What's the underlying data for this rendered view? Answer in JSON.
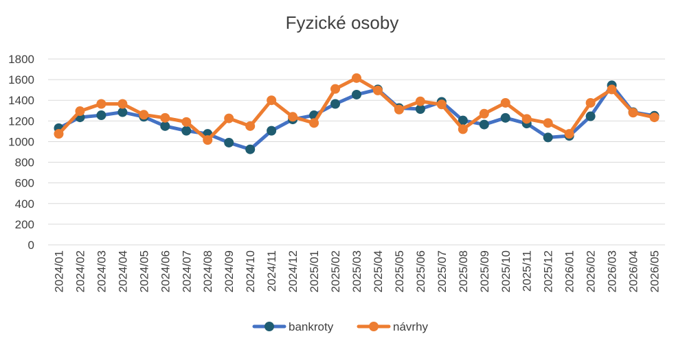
{
  "chart_data": {
    "type": "line",
    "title": "Fyzické osoby",
    "xlabel": "",
    "ylabel": "",
    "ylim": [
      0,
      1800
    ],
    "yticks": [
      0,
      200,
      400,
      600,
      800,
      1000,
      1200,
      1400,
      1600,
      1800
    ],
    "grid": true,
    "legend_position": "bottom",
    "categories": [
      "2024/01",
      "2024/02",
      "2024/03",
      "2024/04",
      "2024/05",
      "2024/06",
      "2024/07",
      "2024/08",
      "2024/09",
      "2024/10",
      "2024/11",
      "2024/12",
      "2025/01",
      "2025/02",
      "2025/03",
      "2025/04",
      "2025/05",
      "2025/06",
      "2025/07",
      "2025/08",
      "2025/09",
      "2025/10",
      "2025/11",
      "2025/12",
      "2026/01",
      "2026/02",
      "2026/03",
      "2026/04",
      "2026/05"
    ],
    "series": [
      {
        "name": "bankroty",
        "color": "#4472C4",
        "marker_color": "#1F5C70",
        "values": [
          1130,
          1235,
          1255,
          1285,
          1240,
          1150,
          1105,
          1075,
          990,
          925,
          1105,
          1215,
          1255,
          1365,
          1455,
          1505,
          1325,
          1315,
          1385,
          1205,
          1165,
          1230,
          1175,
          1040,
          1055,
          1245,
          1545,
          1285,
          1250
        ]
      },
      {
        "name": "návrhy",
        "color": "#ED7D31",
        "marker_color": "#ED7D31",
        "values": [
          1075,
          1295,
          1365,
          1365,
          1260,
          1230,
          1190,
          1015,
          1225,
          1150,
          1400,
          1240,
          1180,
          1510,
          1615,
          1495,
          1310,
          1390,
          1360,
          1120,
          1270,
          1375,
          1220,
          1180,
          1075,
          1375,
          1505,
          1280,
          1235
        ]
      }
    ]
  }
}
